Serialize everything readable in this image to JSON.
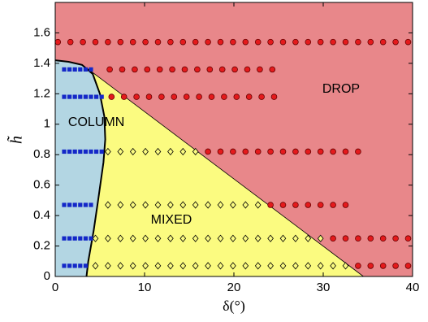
{
  "chart_data": {
    "type": "scatter",
    "xlabel": "δ(°)",
    "ylabel": "h̃",
    "xlim": [
      0,
      40
    ],
    "ylim": [
      0,
      1.8
    ],
    "xticks": [
      0,
      10,
      20,
      30,
      40
    ],
    "yticks": [
      0,
      0.2,
      0.4,
      0.6,
      0.8,
      1,
      1.2,
      1.4,
      1.6
    ],
    "regions": [
      {
        "name": "DROP",
        "color": "#e8878a"
      },
      {
        "name": "MIXED",
        "color": "#fbfb80"
      },
      {
        "name": "COLUMN",
        "color": "#b3d6e3"
      }
    ],
    "boundaries": [
      {
        "x": [
          3.5,
          34.5
        ],
        "y": [
          1.37,
          0
        ]
      },
      {
        "x": [
          0,
          1.5,
          3,
          4.2,
          5,
          5.5,
          5.6,
          5.4,
          4.8,
          4.3,
          4,
          3.7,
          3.5
        ],
        "y": [
          1.42,
          1.41,
          1.39,
          1.33,
          1.2,
          1.05,
          0.9,
          0.75,
          0.5,
          0.3,
          0.2,
          0.1,
          0
        ]
      }
    ],
    "series": [
      {
        "marker": "circle",
        "color": "#e41a1c",
        "y": 1.54,
        "x": [
          0.3,
          1.7,
          3.1,
          4.5,
          5.9,
          7.3,
          8.7,
          10.1,
          11.5,
          12.9,
          14.3,
          15.7,
          17.1,
          18.5,
          19.9,
          21.3,
          22.7,
          24.1,
          25.5,
          26.9,
          28.3,
          29.7,
          31.1,
          32.5,
          33.9,
          35.3,
          36.7,
          38.1,
          39.5
        ]
      },
      {
        "marker": "square",
        "color": "#1428c8",
        "y": 1.36,
        "x": [
          1,
          1.6,
          2.2,
          2.8,
          3.4,
          4
        ]
      },
      {
        "marker": "circle",
        "color": "#e41a1c",
        "y": 1.36,
        "x": [
          6.1,
          7.5,
          8.9,
          10.3,
          11.7,
          13.1,
          14.5,
          15.9,
          17.3,
          18.7,
          20.1,
          21.5,
          22.9,
          24.3
        ]
      },
      {
        "marker": "square",
        "color": "#1428c8",
        "y": 1.18,
        "x": [
          1,
          1.6,
          2.2,
          2.8,
          3.4,
          4,
          4.6,
          5.2
        ]
      },
      {
        "marker": "circle",
        "color": "#e41a1c",
        "y": 1.18,
        "x": [
          6.3,
          7.7,
          9.1,
          10.5,
          11.9,
          13.3,
          14.7,
          16.1,
          17.5,
          18.9,
          20.3,
          21.7,
          23.1,
          24.5
        ]
      },
      {
        "marker": "square",
        "color": "#1428c8",
        "y": 0.82,
        "x": [
          1,
          1.6,
          2.2,
          2.8,
          3.4,
          4,
          4.6,
          5.2
        ]
      },
      {
        "marker": "diamond",
        "color": "#fbfb80",
        "y": 0.82,
        "x": [
          5.9,
          7.3,
          8.7,
          10.1,
          11.5,
          12.9,
          14.3,
          15.7
        ]
      },
      {
        "marker": "circle",
        "color": "#e41a1c",
        "y": 0.82,
        "x": [
          17.1,
          18.5,
          19.9,
          21.3,
          22.7,
          24.1,
          25.5,
          26.9,
          28.3,
          29.7,
          31.1,
          32.5,
          33.9
        ]
      },
      {
        "marker": "square",
        "color": "#1428c8",
        "y": 0.47,
        "x": [
          1,
          1.6,
          2.2,
          2.8,
          3.4,
          4
        ]
      },
      {
        "marker": "diamond",
        "color": "#fbfb80",
        "y": 0.47,
        "x": [
          5.9,
          7.3,
          8.7,
          10.1,
          11.5,
          12.9,
          14.3,
          15.7,
          17.1,
          18.5,
          19.9,
          21.3,
          22.7
        ]
      },
      {
        "marker": "circle",
        "color": "#e41a1c",
        "y": 0.47,
        "x": [
          24.1,
          25.5,
          26.9,
          28.3,
          29.7,
          31.1,
          32.5
        ]
      },
      {
        "marker": "square",
        "color": "#1428c8",
        "y": 0.25,
        "x": [
          1,
          1.6,
          2.2,
          2.8,
          3.4,
          4
        ]
      },
      {
        "marker": "diamond",
        "color": "#fbfb80",
        "y": 0.25,
        "x": [
          4.5,
          5.9,
          7.3,
          8.7,
          10.1,
          11.5,
          12.9,
          14.3,
          15.7,
          17.1,
          18.5,
          19.9,
          21.3,
          22.7,
          24.1,
          25.5,
          26.9,
          28.3,
          29.7
        ]
      },
      {
        "marker": "circle",
        "color": "#e41a1c",
        "y": 0.25,
        "x": [
          31.1,
          32.5,
          33.9,
          35.3,
          36.7,
          38.1,
          39.5
        ]
      },
      {
        "marker": "square",
        "color": "#1428c8",
        "y": 0.07,
        "x": [
          1,
          1.6,
          2.2,
          2.8,
          3.4
        ]
      },
      {
        "marker": "diamond",
        "color": "#fbfb80",
        "y": 0.07,
        "x": [
          4.5,
          5.9,
          7.3,
          8.7,
          10.1,
          11.5,
          12.9,
          14.3,
          15.7,
          17.1,
          18.5,
          19.9,
          21.3,
          22.7,
          24.1,
          25.5,
          26.9,
          28.3,
          29.7,
          31.1,
          32.5
        ]
      },
      {
        "marker": "circle",
        "color": "#e41a1c",
        "y": 0.07,
        "x": [
          33.9,
          35.3,
          36.7,
          38.1,
          39.5
        ]
      }
    ]
  }
}
